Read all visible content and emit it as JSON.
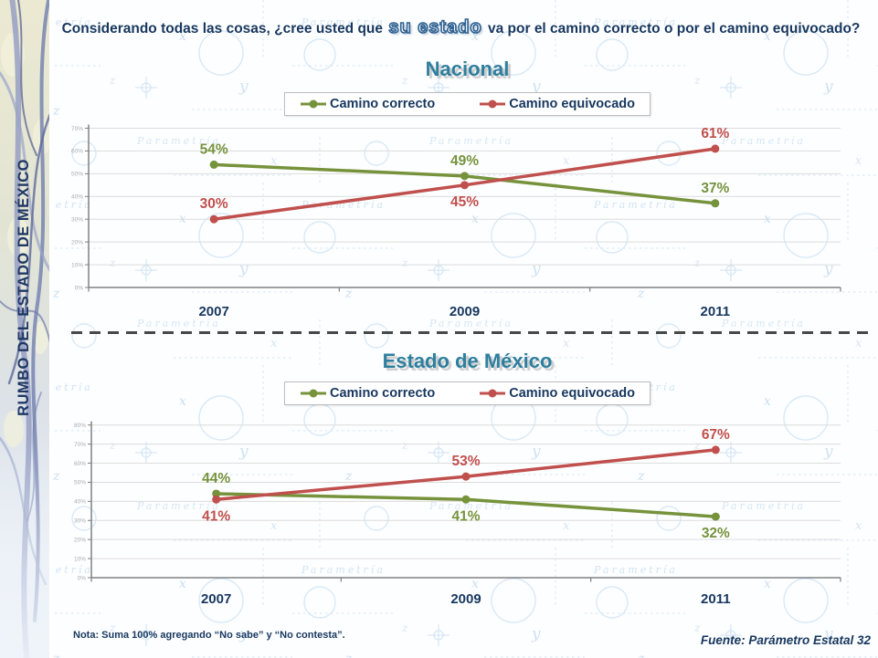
{
  "slide": {
    "title_prefix": "Considerando todas las cosas, ¿cree usted que ",
    "title_highlight": "su estado",
    "title_suffix": " va por el camino correcto o por el camino equivocado?",
    "sidebar_text": "RUMBO DEL ESTADO DE MÉXICO",
    "note": "Nota: Suma 100% agregando “No sabe” y “No contesta”.",
    "source": "Fuente: Parámetro Estatal 32",
    "watermark_text": "Parametría"
  },
  "colors": {
    "navy_text": "#17375E",
    "teal_title": "#2E7F9E",
    "green_series": "#76933C",
    "red_series": "#C0504D",
    "grid_line": "#DCDCDC",
    "axis_line": "#808080",
    "tick_label": "#A6ACB2",
    "watermark_blue": "#D5E6F3"
  },
  "chart_data": [
    {
      "type": "line",
      "title": "Nacional",
      "categories": [
        "2007",
        "2009",
        "2011"
      ],
      "series": [
        {
          "name": "Camino correcto",
          "color": "#76933C",
          "values": [
            54,
            49,
            37
          ],
          "label_positions": [
            "above",
            "above",
            "above"
          ]
        },
        {
          "name": "Camino equivocado",
          "color": "#C0504D",
          "values": [
            30,
            45,
            61
          ],
          "label_positions": [
            "above",
            "below",
            "above"
          ]
        }
      ],
      "ylim": [
        0,
        70
      ],
      "ytick_step": 10,
      "grid": true,
      "legend_position": "top-center",
      "data_label_format": "percent"
    },
    {
      "type": "line",
      "title": "Estado de México",
      "categories": [
        "2007",
        "2009",
        "2011"
      ],
      "series": [
        {
          "name": "Camino correcto",
          "color": "#76933C",
          "values": [
            44,
            41,
            32
          ],
          "label_positions": [
            "above",
            "below",
            "below"
          ]
        },
        {
          "name": "Camino equivocado",
          "color": "#C0504D",
          "values": [
            41,
            53,
            67
          ],
          "label_positions": [
            "below",
            "above",
            "above"
          ]
        }
      ],
      "ylim": [
        0,
        80
      ],
      "ytick_step": 10,
      "grid": true,
      "legend_position": "top-center",
      "data_label_format": "percent"
    }
  ]
}
